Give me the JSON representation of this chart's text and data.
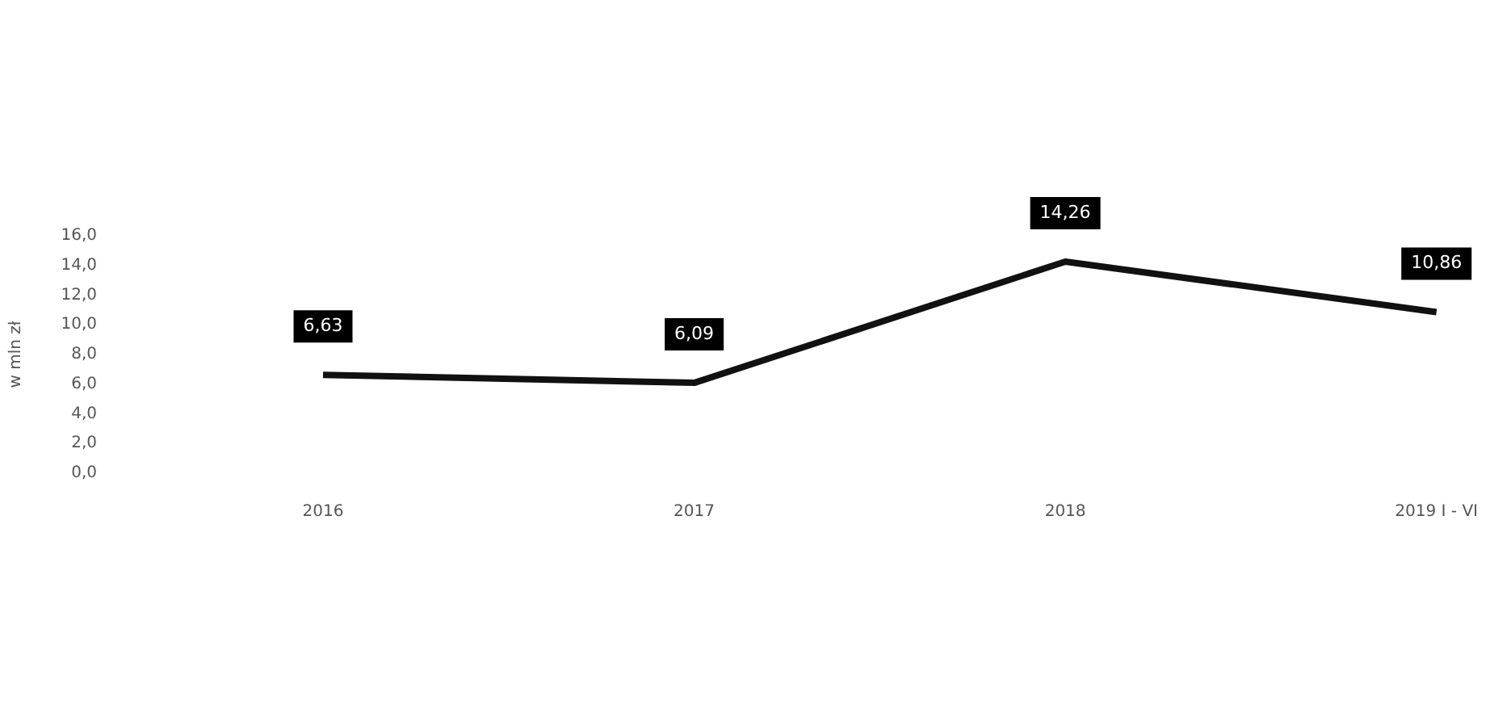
{
  "chart_data": {
    "type": "line",
    "ylabel": "w mln zł",
    "categories": [
      "2016",
      "2017",
      "2018",
      "2019 I - VI"
    ],
    "series": [
      {
        "color": "#111111",
        "values": [
          6.63,
          6.09,
          14.26,
          10.86
        ],
        "value_labels": [
          "6,63",
          "6,09",
          "14,26",
          "10,86"
        ]
      }
    ],
    "ylim": [
      0,
      16
    ],
    "yticks": [
      {
        "value": 0,
        "label": "0,0"
      },
      {
        "value": 2,
        "label": "2,0"
      },
      {
        "value": 4,
        "label": "4,0"
      },
      {
        "value": 6,
        "label": "6,0"
      },
      {
        "value": 8,
        "label": "8,0"
      },
      {
        "value": 10,
        "label": "10,0"
      },
      {
        "value": 12,
        "label": "12,0"
      },
      {
        "value": 14,
        "label": "14,0"
      },
      {
        "value": 16,
        "label": "16,0"
      }
    ],
    "marker": "none",
    "line_style": "solid",
    "grid": false,
    "legend": false
  }
}
